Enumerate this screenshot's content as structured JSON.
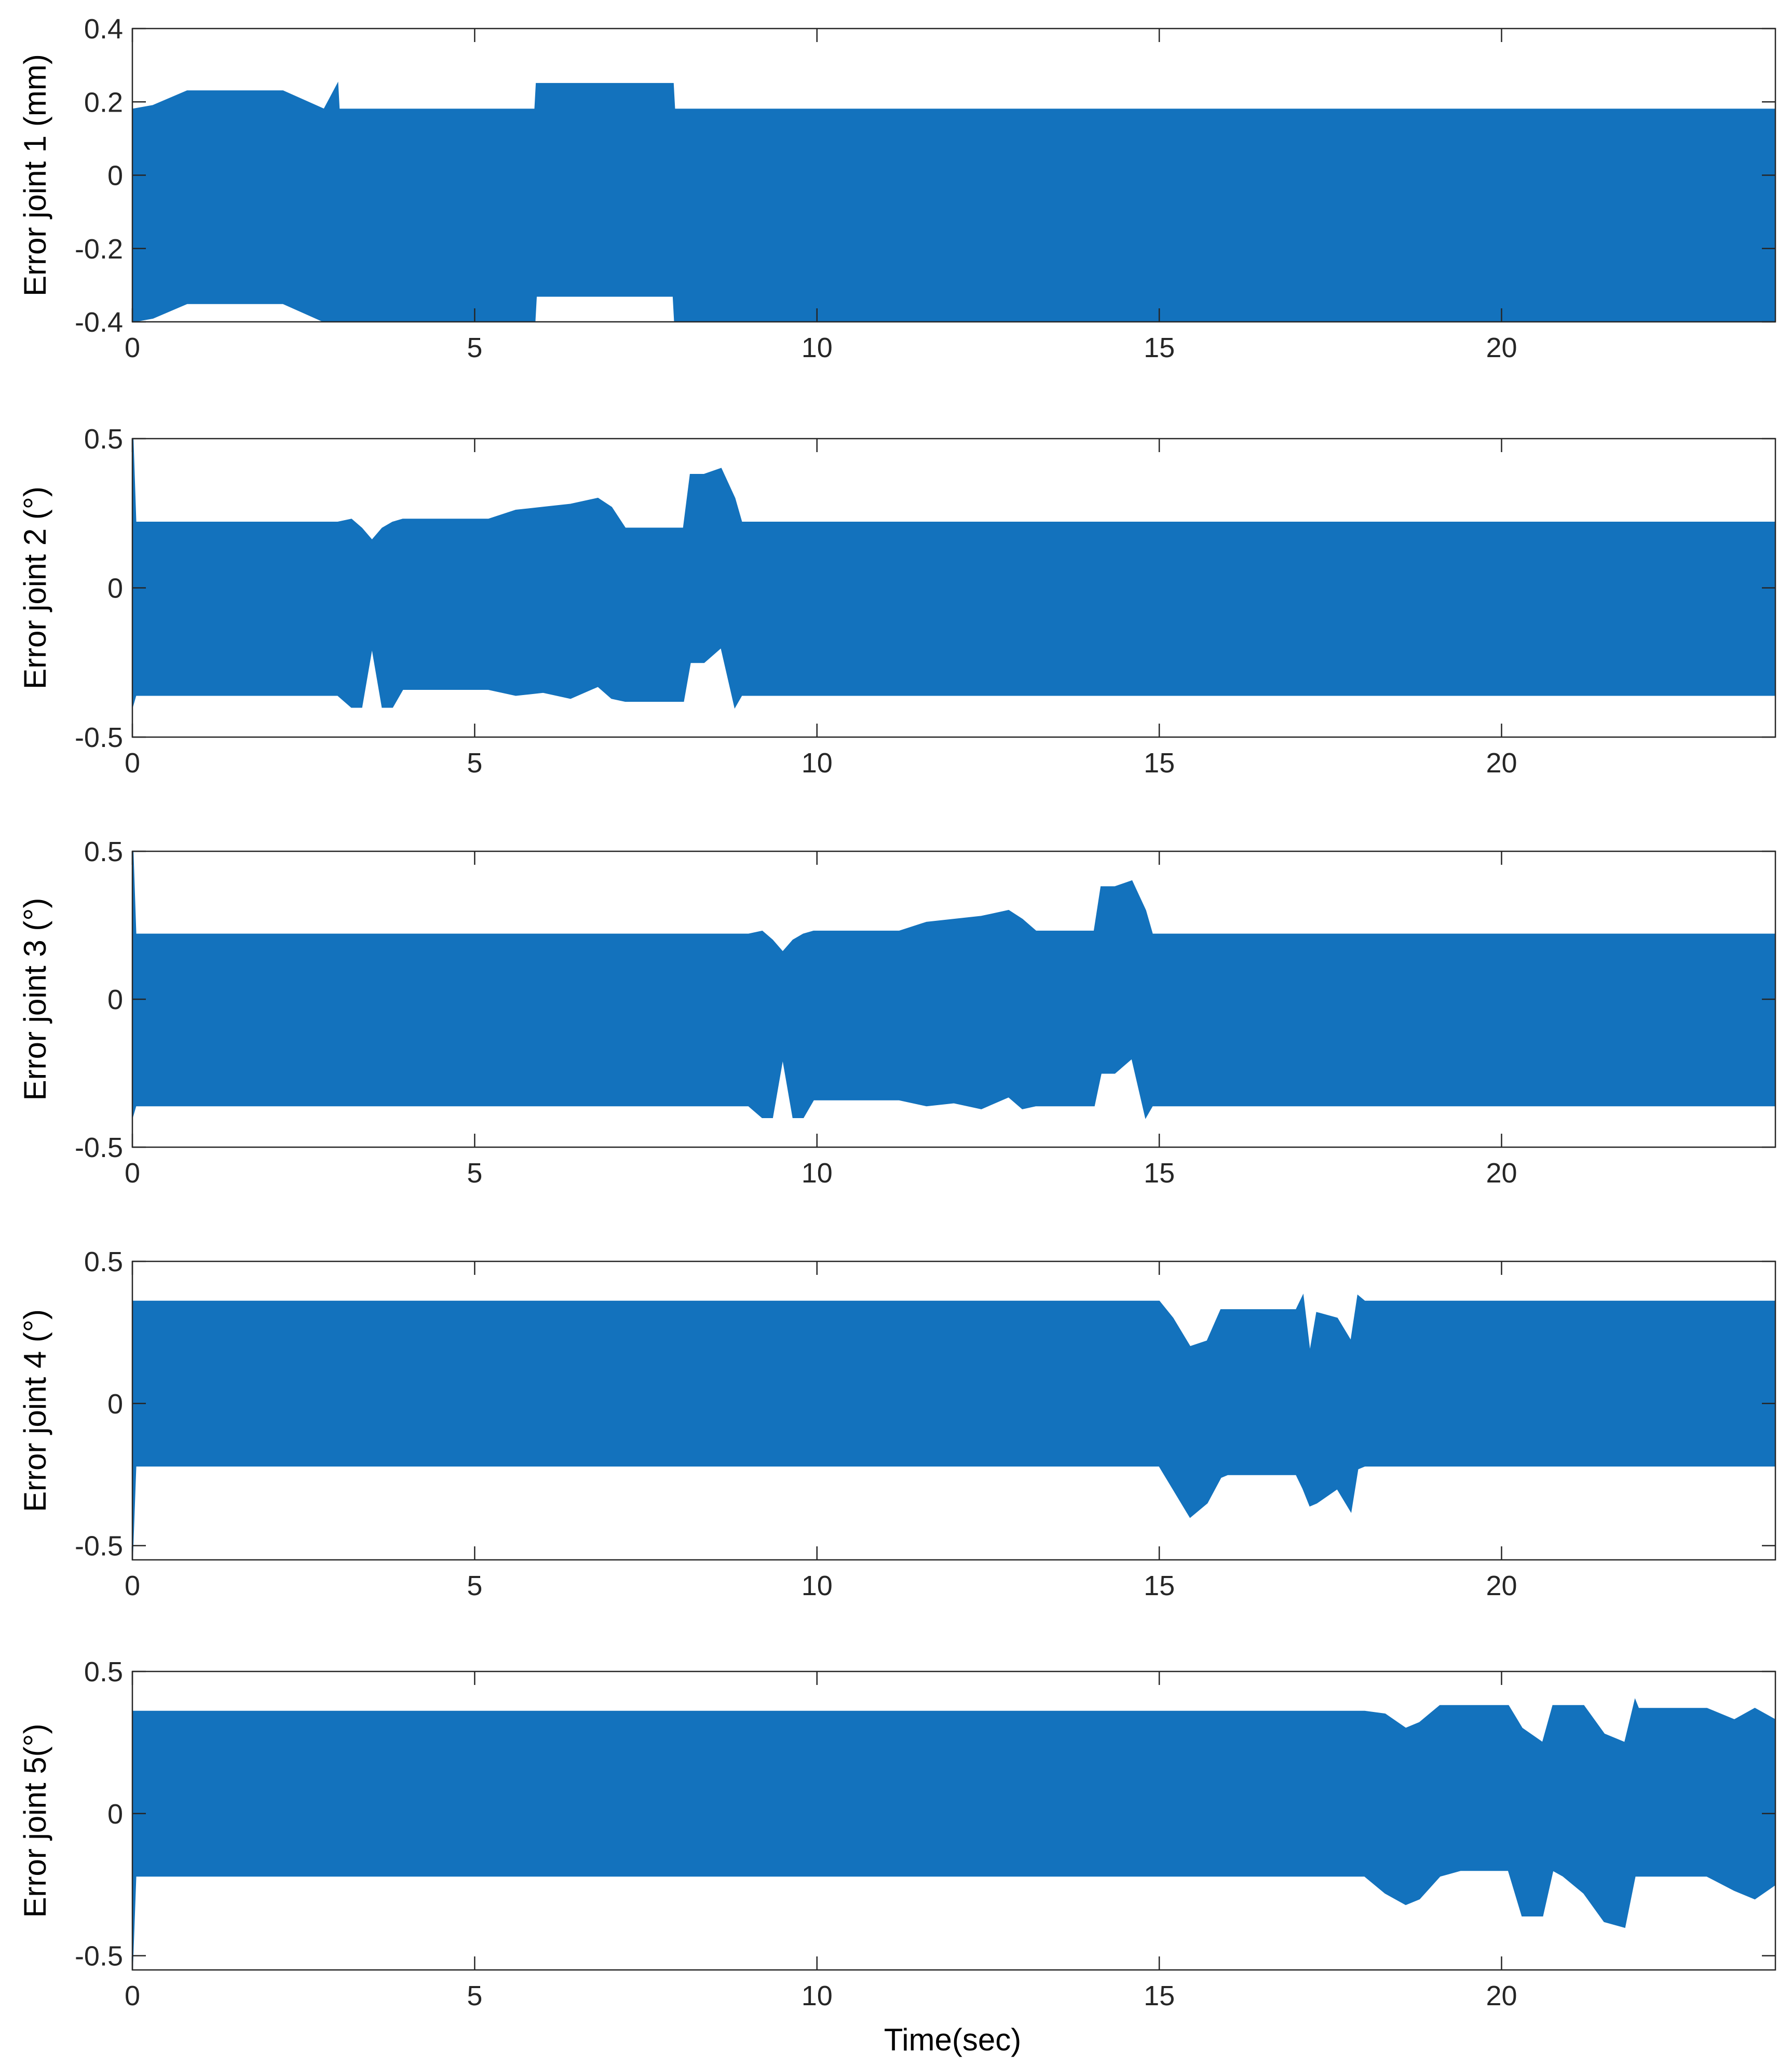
{
  "figure": {
    "xlabel": "Time(sec)"
  },
  "chart_data": [
    {
      "type": "area",
      "title": "",
      "xlabel": "",
      "ylabel": "Error joint 1 (mm)",
      "xlim": [
        0,
        24
      ],
      "ylim": [
        -0.4,
        0.4
      ],
      "xticks": [
        "0",
        "5",
        "10",
        "15",
        "20"
      ],
      "yticks": [
        "-0.4",
        "-0.2",
        "0",
        "0.2",
        "0.4"
      ],
      "grid": false,
      "color": "#1372BD",
      "series": [
        {
          "x": [
            0,
            0.3,
            0.8,
            2.2,
            2.8,
            3.0,
            3.02,
            5.88,
            5.9,
            7.9,
            7.92,
            24
          ],
          "upper": [
            0.18,
            0.19,
            0.23,
            0.23,
            0.18,
            0.25,
            0.18,
            0.18,
            0.25,
            0.25,
            0.18,
            0.18
          ],
          "lower": [
            -0.4,
            -0.39,
            -0.35,
            -0.35,
            -0.4,
            -0.4,
            -0.4,
            -0.4,
            -0.33,
            -0.33,
            -0.4,
            -0.4
          ]
        }
      ]
    },
    {
      "type": "area",
      "title": "",
      "xlabel": "",
      "ylabel": "Error joint 2 (°)",
      "xlim": [
        0,
        24
      ],
      "ylim": [
        -0.5,
        0.5
      ],
      "xticks": [
        "0",
        "5",
        "10",
        "15",
        "20"
      ],
      "yticks": [
        "-0.5",
        "0",
        "0.5"
      ],
      "grid": false,
      "color": "#1372BD",
      "series": [
        {
          "x": [
            0,
            0.05,
            0.1,
            3.0,
            3.2,
            3.35,
            3.5,
            3.65,
            3.8,
            3.95,
            4.1,
            5.2,
            5.6,
            6.0,
            6.4,
            6.8,
            7.0,
            7.2,
            7.5,
            8.05,
            8.15,
            8.35,
            8.6,
            8.8,
            8.9,
            24
          ],
          "upper": [
            0.56,
            0.22,
            0.22,
            0.22,
            0.23,
            0.2,
            0.16,
            0.2,
            0.22,
            0.23,
            0.23,
            0.23,
            0.26,
            0.27,
            0.28,
            0.3,
            0.27,
            0.2,
            0.2,
            0.2,
            0.38,
            0.38,
            0.4,
            0.3,
            0.22,
            0.22
          ],
          "lower": [
            -0.4,
            -0.36,
            -0.36,
            -0.36,
            -0.4,
            -0.4,
            -0.2,
            -0.4,
            -0.4,
            -0.34,
            -0.34,
            -0.34,
            -0.36,
            -0.35,
            -0.37,
            -0.33,
            -0.37,
            -0.38,
            -0.38,
            -0.38,
            -0.25,
            -0.25,
            -0.2,
            -0.4,
            -0.36,
            -0.36
          ]
        }
      ]
    },
    {
      "type": "area",
      "title": "",
      "xlabel": "",
      "ylabel": "Error joint 3 (°)",
      "xlim": [
        0,
        24
      ],
      "ylim": [
        -0.5,
        0.5
      ],
      "xticks": [
        "0",
        "5",
        "10",
        "15",
        "20"
      ],
      "yticks": [
        "-0.5",
        "0",
        "0.5"
      ],
      "grid": false,
      "color": "#1372BD",
      "series": [
        {
          "x": [
            0,
            0.05,
            0.1,
            9.0,
            9.2,
            9.35,
            9.5,
            9.65,
            9.8,
            9.95,
            10.1,
            11.2,
            11.6,
            12.0,
            12.4,
            12.8,
            13.0,
            13.2,
            13.5,
            14.05,
            14.15,
            14.35,
            14.6,
            14.8,
            14.9,
            24
          ],
          "upper": [
            0.56,
            0.22,
            0.22,
            0.22,
            0.23,
            0.2,
            0.16,
            0.2,
            0.22,
            0.23,
            0.23,
            0.23,
            0.26,
            0.27,
            0.28,
            0.3,
            0.27,
            0.23,
            0.23,
            0.23,
            0.38,
            0.38,
            0.4,
            0.3,
            0.22,
            0.22
          ],
          "lower": [
            -0.4,
            -0.36,
            -0.36,
            -0.36,
            -0.4,
            -0.4,
            -0.2,
            -0.4,
            -0.4,
            -0.34,
            -0.34,
            -0.34,
            -0.36,
            -0.35,
            -0.37,
            -0.33,
            -0.37,
            -0.36,
            -0.36,
            -0.36,
            -0.25,
            -0.25,
            -0.2,
            -0.4,
            -0.36,
            -0.36
          ]
        }
      ]
    },
    {
      "type": "area",
      "title": "",
      "xlabel": "",
      "ylabel": "Error joint 4 (°)",
      "xlim": [
        0,
        24
      ],
      "ylim": [
        -0.55,
        0.5
      ],
      "xticks": [
        "0",
        "5",
        "10",
        "15",
        "20"
      ],
      "yticks": [
        "-0.5",
        "0",
        "0.5"
      ],
      "grid": false,
      "color": "#1372BD",
      "series": [
        {
          "x": [
            0,
            0.05,
            0.1,
            15.0,
            15.2,
            15.45,
            15.7,
            15.9,
            16.0,
            16.3,
            17.0,
            17.1,
            17.2,
            17.3,
            17.6,
            17.8,
            17.9,
            18.0,
            24
          ],
          "upper": [
            0.36,
            0.36,
            0.36,
            0.36,
            0.3,
            0.2,
            0.22,
            0.33,
            0.33,
            0.33,
            0.33,
            0.38,
            0.18,
            0.32,
            0.3,
            0.22,
            0.38,
            0.36,
            0.36
          ],
          "lower": [
            -0.55,
            -0.22,
            -0.22,
            -0.22,
            -0.3,
            -0.4,
            -0.35,
            -0.26,
            -0.25,
            -0.25,
            -0.25,
            -0.3,
            -0.36,
            -0.35,
            -0.3,
            -0.38,
            -0.23,
            -0.22,
            -0.22
          ]
        }
      ]
    },
    {
      "type": "area",
      "title": "",
      "xlabel": "Time(sec)",
      "ylabel": "Error joint 5(°)",
      "xlim": [
        0,
        24
      ],
      "ylim": [
        -0.55,
        0.5
      ],
      "xticks": [
        "0",
        "5",
        "10",
        "15",
        "20"
      ],
      "yticks": [
        "-0.5",
        "0",
        "0.5"
      ],
      "grid": false,
      "color": "#1372BD",
      "series": [
        {
          "x": [
            0,
            0.05,
            0.1,
            18.0,
            18.3,
            18.6,
            18.8,
            19.1,
            19.4,
            19.8,
            20.1,
            20.3,
            20.6,
            20.75,
            20.9,
            21.2,
            21.5,
            21.8,
            21.95,
            22.0,
            22.4,
            23.0,
            23.4,
            23.7,
            24
          ],
          "upper": [
            0.36,
            0.36,
            0.36,
            0.36,
            0.35,
            0.3,
            0.32,
            0.38,
            0.38,
            0.38,
            0.38,
            0.3,
            0.25,
            0.38,
            0.38,
            0.38,
            0.28,
            0.25,
            0.4,
            0.37,
            0.37,
            0.37,
            0.33,
            0.37,
            0.33
          ],
          "lower": [
            -0.55,
            -0.22,
            -0.22,
            -0.22,
            -0.28,
            -0.32,
            -0.3,
            -0.22,
            -0.2,
            -0.2,
            -0.2,
            -0.36,
            -0.36,
            -0.2,
            -0.22,
            -0.28,
            -0.38,
            -0.4,
            -0.22,
            -0.22,
            -0.22,
            -0.22,
            -0.27,
            -0.3,
            -0.25
          ]
        }
      ]
    }
  ]
}
